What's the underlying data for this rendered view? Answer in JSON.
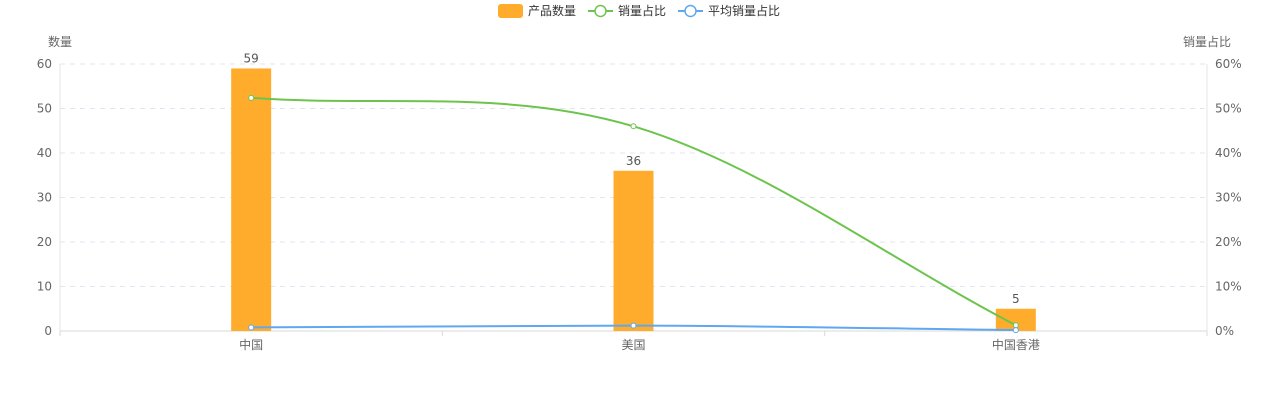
{
  "chart_data": {
    "type": "bar",
    "categories": [
      "中国",
      "美国",
      "中国香港"
    ],
    "series": [
      {
        "name": "产品数量",
        "kind": "bar",
        "axis": "left",
        "values": [
          59,
          36,
          5
        ],
        "labels": [
          "59",
          "36",
          "5"
        ],
        "color": "#FFAC2D"
      },
      {
        "name": "销量占比",
        "kind": "line",
        "axis": "right",
        "values": [
          52.4,
          46.0,
          1.3
        ],
        "color": "#6DC44C"
      },
      {
        "name": "平均销量占比",
        "kind": "line",
        "axis": "right",
        "values": [
          0.8,
          1.2,
          0.2
        ],
        "color": "#5FA8F0"
      }
    ],
    "y_left": {
      "label": "数量",
      "min": 0,
      "max": 60,
      "ticks": [
        "0",
        "10",
        "20",
        "30",
        "40",
        "50",
        "60"
      ]
    },
    "y_right": {
      "label": "销量占比",
      "min": 0,
      "max": 60,
      "ticks": [
        "0%",
        "10%",
        "20%",
        "30%",
        "40%",
        "50%",
        "60%"
      ]
    },
    "grid": true,
    "legend_position": "top-center"
  }
}
